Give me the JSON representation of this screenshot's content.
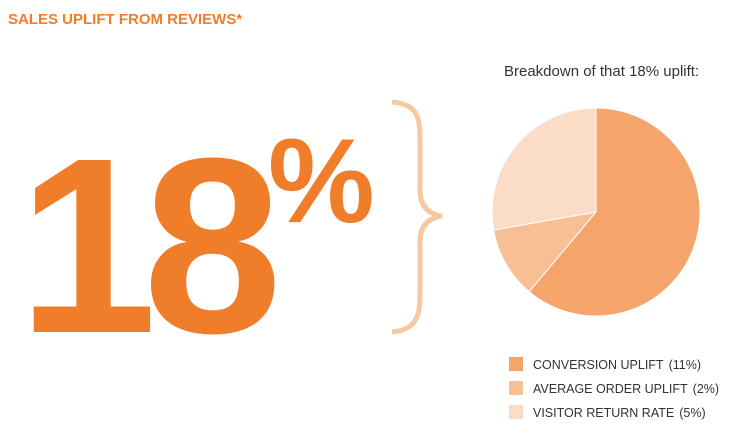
{
  "chart_data": {
    "type": "pie",
    "title": "SALES UPLIFT FROM REVIEWS*",
    "headline_value": 18,
    "headline_unit": "%",
    "subtitle": "Breakdown of that 18% uplift:",
    "categories": [
      "CONVERSION UPLIFT",
      "AVERAGE ORDER UPLIFT",
      "VISITOR RETURN RATE"
    ],
    "values": [
      11,
      2,
      5
    ],
    "value_labels": [
      "(11%)",
      "(2%)",
      "(5%)"
    ],
    "colors": [
      "#f5a56b",
      "#f8bf94",
      "#fbdcc6"
    ]
  }
}
